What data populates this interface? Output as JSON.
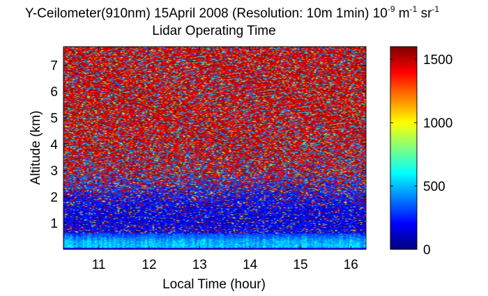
{
  "chart_data": {
    "type": "heatmap",
    "title_prefix": "Y-Ceilometer(910nm) 15April 2008 (Resolution: 10m 1min) 10",
    "title_unit_exp1": "-9",
    "title_unit_m": " m",
    "title_unit_exp2": "-1",
    "title_unit_sr": " sr",
    "title_unit_exp3": "-1",
    "subtitle": "Lidar Operating Time",
    "xlabel": "Local Time (hour)",
    "ylabel": "Altitude (km)",
    "xlim": [
      10.3,
      16.3
    ],
    "ylim": [
      0,
      7.7
    ],
    "xticks": [
      11,
      12,
      13,
      14,
      15,
      16
    ],
    "yticks": [
      1,
      2,
      3,
      4,
      5,
      6,
      7
    ],
    "colorbar": {
      "range": [
        0,
        1600
      ],
      "ticks": [
        0,
        500,
        1000,
        1500
      ],
      "colormap": "jet"
    },
    "grid": false,
    "value_profile": [
      {
        "altitude_km": 0.0,
        "value": 380
      },
      {
        "altitude_km": 0.1,
        "value": 520
      },
      {
        "altitude_km": 0.3,
        "value": 480
      },
      {
        "altitude_km": 0.6,
        "value": 300
      },
      {
        "altitude_km": 1.0,
        "value": 180
      },
      {
        "altitude_km": 1.5,
        "value": 220
      },
      {
        "altitude_km": 2.0,
        "value": 450
      },
      {
        "altitude_km": 2.5,
        "value": 800
      },
      {
        "altitude_km": 3.0,
        "value": 1100
      },
      {
        "altitude_km": 4.0,
        "value": 1300
      },
      {
        "altitude_km": 5.0,
        "value": 1350
      },
      {
        "altitude_km": 6.0,
        "value": 1350
      },
      {
        "altitude_km": 7.7,
        "value": 1350
      }
    ]
  }
}
